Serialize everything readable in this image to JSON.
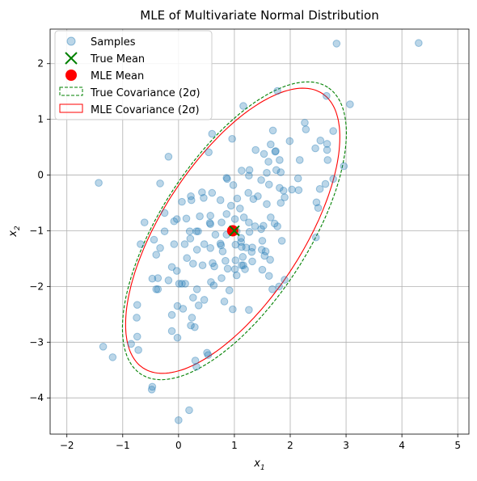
{
  "chart_data": {
    "type": "scatter",
    "title": "MLE of Multivariate Normal Distribution",
    "xlabel": "x",
    "xlabel_sub": "1",
    "ylabel": "x",
    "ylabel_sub": "2",
    "xlim": [
      -2.3,
      5.2
    ],
    "ylim": [
      -4.65,
      2.62
    ],
    "xticks": [
      -2,
      -1,
      0,
      1,
      2,
      3,
      4,
      5
    ],
    "yticks": [
      -4,
      -3,
      -2,
      -1,
      0,
      1,
      2
    ],
    "xtick_labels": [
      "−2",
      "−1",
      "0",
      "1",
      "2",
      "3",
      "4",
      "5"
    ],
    "ytick_labels": [
      "−4",
      "−3",
      "−2",
      "−1",
      "0",
      "1",
      "2"
    ],
    "grid": true,
    "legend_position": "top-left",
    "colors": {
      "samples": "#1f77b4",
      "true_mean": "#008000",
      "mle_mean": "#ff0000",
      "true_cov": "#008000",
      "mle_cov": "#ff0000"
    },
    "legend": [
      {
        "label": "Samples",
        "marker": "dot"
      },
      {
        "label": "True Mean",
        "marker": "x"
      },
      {
        "label": "MLE Mean",
        "marker": "bigdot"
      },
      {
        "label": "True Covariance (2σ)",
        "marker": "dashed-box"
      },
      {
        "label": "MLE Covariance (2σ)",
        "marker": "solid-box"
      }
    ],
    "true_mean": [
      1.0,
      -1.0
    ],
    "mle_mean": [
      0.97,
      -1.0
    ],
    "true_covariance_ellipse": {
      "center": [
        1.0,
        -1.0
      ],
      "semi_major": 3.07,
      "semi_minor": 1.32,
      "angle_deg": 57
    },
    "mle_covariance_ellipse": {
      "center": [
        0.97,
        -1.0
      ],
      "semi_major": 2.94,
      "semi_minor": 1.26,
      "angle_deg": 57
    },
    "samples": [
      [
        2.83,
        2.36
      ],
      [
        4.3,
        2.37
      ],
      [
        1.77,
        1.51
      ],
      [
        2.65,
        1.42
      ],
      [
        3.07,
        1.27
      ],
      [
        1.16,
        1.24
      ],
      [
        2.26,
        0.94
      ],
      [
        2.28,
        0.82
      ],
      [
        2.77,
        0.79
      ],
      [
        2.66,
        0.56
      ],
      [
        2.66,
        0.45
      ],
      [
        1.69,
        0.8
      ],
      [
        1.65,
        0.55
      ],
      [
        1.73,
        0.42
      ],
      [
        1.74,
        0.43
      ],
      [
        0.6,
        0.74
      ],
      [
        0.96,
        0.65
      ],
      [
        1.99,
        0.61
      ],
      [
        2.45,
        0.48
      ],
      [
        2.54,
        0.62
      ],
      [
        2.17,
        0.27
      ],
      [
        2.67,
        0.27
      ],
      [
        0.54,
        0.41
      ],
      [
        -0.18,
        0.33
      ],
      [
        1.38,
        0.45
      ],
      [
        1.53,
        0.38
      ],
      [
        1.61,
        0.24
      ],
      [
        1.81,
        0.27
      ],
      [
        2.96,
        0.16
      ],
      [
        1.83,
        0.05
      ],
      [
        1.13,
        0.08
      ],
      [
        1.27,
        0.09
      ],
      [
        1.75,
        0.09
      ],
      [
        1.58,
        0.04
      ],
      [
        2.14,
        -0.06
      ],
      [
        2.77,
        -0.07
      ],
      [
        -1.43,
        -0.14
      ],
      [
        -0.33,
        -0.15
      ],
      [
        0.86,
        -0.05
      ],
      [
        0.98,
        -0.18
      ],
      [
        1.26,
        -0.01
      ],
      [
        1.48,
        -0.09
      ],
      [
        1.62,
        -0.17
      ],
      [
        1.81,
        -0.23
      ],
      [
        1.88,
        -0.28
      ],
      [
        2.03,
        -0.26
      ],
      [
        2.15,
        -0.27
      ],
      [
        2.53,
        -0.25
      ],
      [
        2.63,
        -0.16
      ],
      [
        0.87,
        -0.07
      ],
      [
        0.42,
        -0.31
      ],
      [
        0.6,
        -0.32
      ],
      [
        0.75,
        -0.45
      ],
      [
        1.05,
        -0.42
      ],
      [
        1.25,
        -0.32
      ],
      [
        1.34,
        -0.43
      ],
      [
        1.42,
        -0.38
      ],
      [
        1.58,
        -0.52
      ],
      [
        1.83,
        -0.5
      ],
      [
        1.9,
        -0.4
      ],
      [
        2.47,
        -0.49
      ],
      [
        2.5,
        -0.59
      ],
      [
        0.22,
        -0.38
      ],
      [
        0.23,
        -0.45
      ],
      [
        0.06,
        -0.48
      ],
      [
        0.45,
        -0.41
      ],
      [
        0.94,
        -0.55
      ],
      [
        0.86,
        -0.7
      ],
      [
        1.1,
        -0.6
      ],
      [
        1.17,
        -0.76
      ],
      [
        1.26,
        -0.85
      ],
      [
        1.37,
        -0.92
      ],
      [
        1.52,
        -0.91
      ],
      [
        1.77,
        -0.92
      ],
      [
        1.65,
        -0.76
      ],
      [
        1.72,
        -0.87
      ],
      [
        -0.61,
        -0.85
      ],
      [
        -0.25,
        -0.68
      ],
      [
        0.14,
        -0.78
      ],
      [
        0.38,
        -0.74
      ],
      [
        0.57,
        -0.88
      ],
      [
        0.57,
        -0.73
      ],
      [
        0.77,
        -0.85
      ],
      [
        1.01,
        -0.79
      ],
      [
        1.04,
        -1.01
      ],
      [
        1.12,
        -1.13
      ],
      [
        1.27,
        -1.02
      ],
      [
        1.48,
        -0.97
      ],
      [
        1.5,
        -1.18
      ],
      [
        1.85,
        -1.18
      ],
      [
        2.46,
        -1.12
      ],
      [
        -0.08,
        -0.83
      ],
      [
        -0.03,
        -0.79
      ],
      [
        -0.25,
        -1.01
      ],
      [
        0.2,
        -1.01
      ],
      [
        0.32,
        -1.01
      ],
      [
        0.35,
        -1.01
      ],
      [
        0.56,
        -0.86
      ],
      [
        0.86,
        -1.07
      ],
      [
        0.66,
        -1.07
      ],
      [
        0.75,
        -1.23
      ],
      [
        1.02,
        -1.25
      ],
      [
        1.12,
        -1.2
      ],
      [
        1.13,
        -1.29
      ],
      [
        1.21,
        -1.3
      ],
      [
        1.32,
        -1.3
      ],
      [
        1.31,
        -1.38
      ],
      [
        1.49,
        -1.34
      ],
      [
        1.56,
        -1.37
      ],
      [
        1.54,
        -1.45
      ],
      [
        1.64,
        -1.52
      ],
      [
        -0.68,
        -1.24
      ],
      [
        -0.44,
        -1.16
      ],
      [
        -0.33,
        -1.31
      ],
      [
        -0.08,
        -1.24
      ],
      [
        0.11,
        -1.24
      ],
      [
        0.21,
        -1.14
      ],
      [
        0.33,
        -1.34
      ],
      [
        0.46,
        -1.24
      ],
      [
        0.57,
        -1.31
      ],
      [
        0.76,
        -1.26
      ],
      [
        0.79,
        -1.37
      ],
      [
        1.02,
        -1.53
      ],
      [
        1.13,
        -1.62
      ],
      [
        1.15,
        -1.47
      ],
      [
        1.32,
        -1.55
      ],
      [
        -0.4,
        -1.43
      ],
      [
        0.15,
        -1.49
      ],
      [
        0.26,
        -1.59
      ],
      [
        0.43,
        -1.62
      ],
      [
        0.61,
        -1.58
      ],
      [
        0.64,
        -1.64
      ],
      [
        0.84,
        -1.54
      ],
      [
        0.88,
        -1.68
      ],
      [
        1.01,
        -1.69
      ],
      [
        1.16,
        -1.62
      ],
      [
        1.04,
        -1.8
      ],
      [
        1.19,
        -1.69
      ],
      [
        1.5,
        -1.7
      ],
      [
        1.62,
        -1.81
      ],
      [
        1.68,
        -2.05
      ],
      [
        1.8,
        -2.0
      ],
      [
        -0.12,
        -1.65
      ],
      [
        -0.03,
        -1.72
      ],
      [
        -0.47,
        -1.86
      ],
      [
        -0.37,
        -1.85
      ],
      [
        -0.18,
        -1.89
      ],
      [
        0.01,
        -1.95
      ],
      [
        0.06,
        -1.95
      ],
      [
        0.12,
        -1.95
      ],
      [
        0.58,
        -1.92
      ],
      [
        0.63,
        -1.98
      ],
      [
        0.77,
        -1.85
      ],
      [
        -0.4,
        -2.05
      ],
      [
        -0.37,
        -2.05
      ],
      [
        0.33,
        -2.05
      ],
      [
        0.46,
        -2.24
      ],
      [
        0.91,
        -2.07
      ],
      [
        1.9,
        -1.88
      ],
      [
        0.26,
        -2.2
      ],
      [
        -0.02,
        -2.35
      ],
      [
        0.08,
        -2.4
      ],
      [
        0.82,
        -2.27
      ],
      [
        0.97,
        -2.41
      ],
      [
        1.26,
        -2.42
      ],
      [
        -0.12,
        -2.51
      ],
      [
        0.24,
        -2.56
      ],
      [
        0.36,
        -2.34
      ],
      [
        -0.74,
        -2.33
      ],
      [
        -0.75,
        -2.56
      ],
      [
        0.22,
        -2.7
      ],
      [
        0.29,
        -2.73
      ],
      [
        -0.12,
        -2.8
      ],
      [
        -0.02,
        -2.92
      ],
      [
        -0.74,
        -2.9
      ],
      [
        -0.72,
        -3.14
      ],
      [
        -0.85,
        -3.03
      ],
      [
        0.3,
        -3.33
      ],
      [
        0.32,
        -3.44
      ],
      [
        0.51,
        -3.19
      ],
      [
        0.53,
        -3.23
      ],
      [
        -1.35,
        -3.08
      ],
      [
        -1.18,
        -3.27
      ],
      [
        -0.47,
        -3.8
      ],
      [
        -0.48,
        -3.85
      ],
      [
        0.19,
        -4.22
      ],
      [
        0.0,
        -4.4
      ]
    ]
  }
}
